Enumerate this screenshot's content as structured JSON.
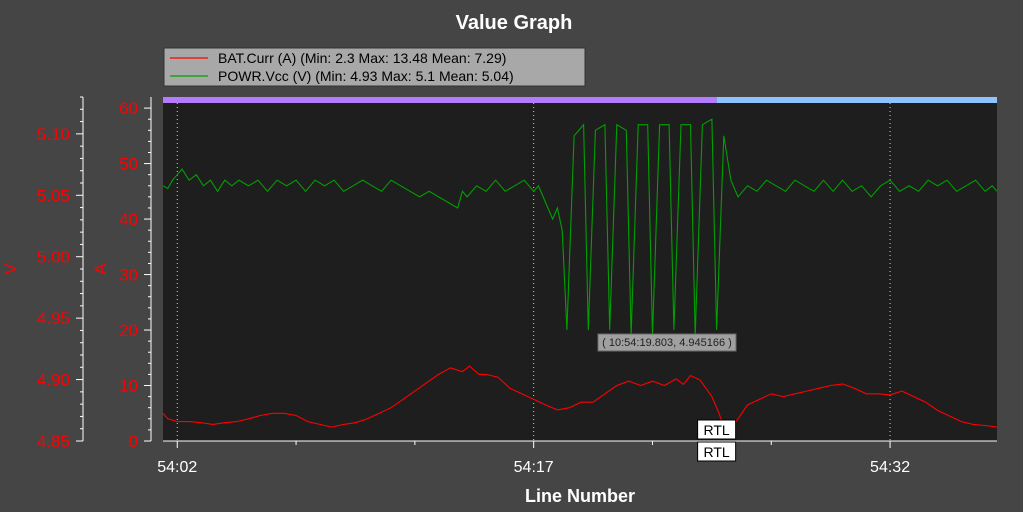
{
  "chart_data": {
    "type": "line",
    "title": "Value Graph",
    "xlabel": "Line Number",
    "x_ticks": [
      "54:02",
      "54:17",
      "54:32"
    ],
    "x_tick_seconds": [
      2,
      17,
      32
    ],
    "xlim_seconds": [
      1.4,
      36.5
    ],
    "y_axes": {
      "current": {
        "label": "A",
        "ylim": [
          0,
          62
        ],
        "ticks": [
          "0",
          "10",
          "20",
          "30",
          "40",
          "50",
          "60"
        ],
        "color": "#ff0000"
      },
      "voltage": {
        "label": "V",
        "ylim": [
          4.85,
          5.13
        ],
        "ticks": [
          "4.85",
          "4.90",
          "4.95",
          "5.00",
          "5.05",
          "5.10"
        ],
        "color": "#ff0000"
      }
    },
    "legend": {
      "position": "top-left",
      "entries": [
        {
          "name": "BAT.Curr (A) (Min: 2.3 Max: 13.48 Mean: 7.29)",
          "color": "#ff0000"
        },
        {
          "name": "POWR.Vcc (V) (Min: 4.93 Max: 5.1 Mean: 5.04)",
          "color": "#00a000"
        }
      ]
    },
    "series": [
      {
        "name": "POWR.Vcc (V)",
        "axis": "current",
        "color": "#00a000",
        "points": [
          [
            1.4,
            46
          ],
          [
            1.6,
            45.5
          ],
          [
            1.8,
            47
          ],
          [
            2.0,
            48
          ],
          [
            2.2,
            49
          ],
          [
            2.5,
            47
          ],
          [
            2.8,
            48
          ],
          [
            3.1,
            46
          ],
          [
            3.4,
            47
          ],
          [
            3.7,
            45
          ],
          [
            4.0,
            47
          ],
          [
            4.3,
            46
          ],
          [
            4.6,
            47
          ],
          [
            5.0,
            46
          ],
          [
            5.4,
            47
          ],
          [
            5.8,
            45
          ],
          [
            6.2,
            47
          ],
          [
            6.6,
            46
          ],
          [
            7.0,
            47
          ],
          [
            7.4,
            45
          ],
          [
            7.8,
            47
          ],
          [
            8.2,
            46
          ],
          [
            8.6,
            47
          ],
          [
            9.0,
            45
          ],
          [
            9.4,
            46
          ],
          [
            9.8,
            47
          ],
          [
            10.2,
            46
          ],
          [
            10.6,
            45
          ],
          [
            11.0,
            47
          ],
          [
            11.4,
            46
          ],
          [
            11.8,
            45
          ],
          [
            12.2,
            44
          ],
          [
            12.6,
            45
          ],
          [
            13.0,
            44
          ],
          [
            13.4,
            43
          ],
          [
            13.8,
            42
          ],
          [
            14.0,
            45
          ],
          [
            14.2,
            44
          ],
          [
            14.6,
            46
          ],
          [
            15.0,
            45
          ],
          [
            15.4,
            47
          ],
          [
            15.8,
            45
          ],
          [
            16.2,
            46
          ],
          [
            16.6,
            47
          ],
          [
            17.0,
            45
          ],
          [
            17.2,
            46
          ],
          [
            17.4,
            44
          ],
          [
            17.6,
            42
          ],
          [
            17.8,
            40
          ],
          [
            18.0,
            42
          ],
          [
            18.2,
            38
          ],
          [
            18.4,
            20
          ],
          [
            18.7,
            55
          ],
          [
            19.1,
            57
          ],
          [
            19.3,
            20
          ],
          [
            19.6,
            56
          ],
          [
            20.0,
            57
          ],
          [
            20.2,
            20
          ],
          [
            20.5,
            57
          ],
          [
            20.9,
            56
          ],
          [
            21.1,
            19
          ],
          [
            21.4,
            57
          ],
          [
            21.8,
            57
          ],
          [
            22.0,
            19
          ],
          [
            22.3,
            57
          ],
          [
            22.7,
            57
          ],
          [
            22.9,
            20
          ],
          [
            23.2,
            57
          ],
          [
            23.6,
            57
          ],
          [
            23.8,
            19
          ],
          [
            24.1,
            57
          ],
          [
            24.5,
            58
          ],
          [
            24.7,
            20
          ],
          [
            25.0,
            55
          ],
          [
            25.3,
            47
          ],
          [
            25.6,
            44
          ],
          [
            26.0,
            46
          ],
          [
            26.4,
            45
          ],
          [
            26.8,
            47
          ],
          [
            27.2,
            46
          ],
          [
            27.6,
            45
          ],
          [
            28.0,
            47
          ],
          [
            28.4,
            46
          ],
          [
            28.8,
            45
          ],
          [
            29.2,
            47
          ],
          [
            29.6,
            45
          ],
          [
            30.0,
            47
          ],
          [
            30.4,
            45
          ],
          [
            30.8,
            46
          ],
          [
            31.2,
            44
          ],
          [
            31.6,
            46
          ],
          [
            32.0,
            47
          ],
          [
            32.4,
            45
          ],
          [
            32.8,
            46
          ],
          [
            33.2,
            45
          ],
          [
            33.6,
            47
          ],
          [
            34.0,
            46
          ],
          [
            34.4,
            47
          ],
          [
            34.8,
            45
          ],
          [
            35.2,
            46
          ],
          [
            35.6,
            47
          ],
          [
            36.0,
            45
          ],
          [
            36.3,
            46
          ],
          [
            36.5,
            45
          ]
        ]
      },
      {
        "name": "BAT.Curr (A)",
        "axis": "current",
        "color": "#ff0000",
        "points": [
          [
            1.4,
            5
          ],
          [
            1.6,
            4
          ],
          [
            2.0,
            3.5
          ],
          [
            2.5,
            3.5
          ],
          [
            3.0,
            3.3
          ],
          [
            3.5,
            3.0
          ],
          [
            4.0,
            3.3
          ],
          [
            4.5,
            3.5
          ],
          [
            5.0,
            4
          ],
          [
            5.5,
            4.6
          ],
          [
            6.0,
            5
          ],
          [
            6.5,
            5
          ],
          [
            7.0,
            4.6
          ],
          [
            7.5,
            3.5
          ],
          [
            8.0,
            3
          ],
          [
            8.5,
            2.5
          ],
          [
            9.0,
            3
          ],
          [
            9.5,
            3.3
          ],
          [
            10.0,
            4
          ],
          [
            10.5,
            5
          ],
          [
            11.0,
            6
          ],
          [
            11.5,
            7.5
          ],
          [
            12.0,
            9
          ],
          [
            12.5,
            10.5
          ],
          [
            13.0,
            12
          ],
          [
            13.5,
            13.2
          ],
          [
            14.0,
            12.5
          ],
          [
            14.3,
            13.5
          ],
          [
            14.7,
            12
          ],
          [
            15.0,
            12
          ],
          [
            15.5,
            11.5
          ],
          [
            16.0,
            9.5
          ],
          [
            16.5,
            8.5
          ],
          [
            17.0,
            7.5
          ],
          [
            17.5,
            6.5
          ],
          [
            18.0,
            5.6
          ],
          [
            18.5,
            6
          ],
          [
            19.0,
            7
          ],
          [
            19.5,
            7
          ],
          [
            20.0,
            8.5
          ],
          [
            20.5,
            10
          ],
          [
            21.0,
            10.8
          ],
          [
            21.5,
            10
          ],
          [
            22.0,
            10.8
          ],
          [
            22.5,
            10
          ],
          [
            23.0,
            11.2
          ],
          [
            23.3,
            10.2
          ],
          [
            23.6,
            11.8
          ],
          [
            24.0,
            11
          ],
          [
            24.5,
            8
          ],
          [
            24.8,
            5
          ],
          [
            25.0,
            2.5
          ],
          [
            25.3,
            2.3
          ],
          [
            25.6,
            4
          ],
          [
            26.0,
            6.5
          ],
          [
            26.5,
            7.5
          ],
          [
            27.0,
            8.5
          ],
          [
            27.5,
            8
          ],
          [
            28.0,
            8.5
          ],
          [
            28.5,
            9
          ],
          [
            29.0,
            9.5
          ],
          [
            29.5,
            10
          ],
          [
            30.0,
            10.3
          ],
          [
            30.5,
            9.5
          ],
          [
            31.0,
            8.5
          ],
          [
            31.5,
            8.5
          ],
          [
            32.0,
            8.3
          ],
          [
            32.5,
            9
          ],
          [
            33.0,
            8
          ],
          [
            33.5,
            7
          ],
          [
            34.0,
            5.5
          ],
          [
            34.5,
            4.5
          ],
          [
            35.0,
            3.5
          ],
          [
            35.5,
            3
          ],
          [
            36.0,
            2.8
          ],
          [
            36.5,
            2.5
          ]
        ]
      }
    ],
    "flight_mode_bar": [
      {
        "from": 1.4,
        "to": 24.7,
        "color": "#b57bff"
      },
      {
        "from": 24.7,
        "to": 36.5,
        "color": "#8ec3ff"
      }
    ],
    "annotations": [
      {
        "text": "RTL",
        "x": 24.7
      },
      {
        "text": "RTL",
        "x": 24.7
      }
    ],
    "tooltip": {
      "text": "( 10:54:19.803, 4.945166 )"
    },
    "grid": true,
    "background": "#1e1e1e"
  }
}
